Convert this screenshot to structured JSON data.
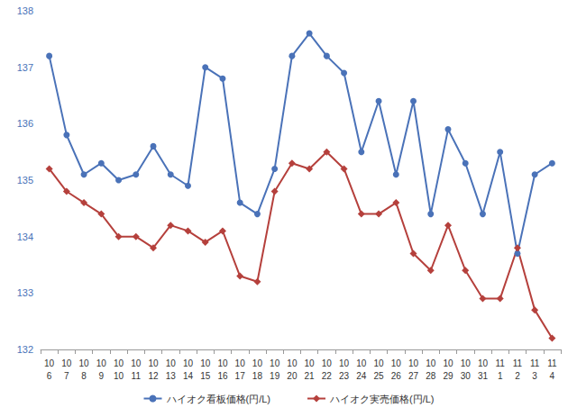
{
  "chart_data": {
    "type": "line",
    "categories": [
      "10\n6",
      "10\n7",
      "10\n8",
      "10\n9",
      "10\n10",
      "10\n11",
      "10\n12",
      "10\n13",
      "10\n14",
      "10\n15",
      "10\n16",
      "10\n17",
      "10\n18",
      "10\n19",
      "10\n20",
      "10\n21",
      "10\n22",
      "10\n23",
      "10\n24",
      "10\n25",
      "10\n26",
      "10\n27",
      "10\n28",
      "10\n29",
      "10\n30",
      "10\n31",
      "11\n1",
      "11\n2",
      "11\n3",
      "11\n4"
    ],
    "series": [
      {
        "name": "ハイオク看板価格(円/L)",
        "color": "#4a72b8",
        "marker": "circle",
        "line_style": "solid",
        "values": [
          137.2,
          135.8,
          135.1,
          135.3,
          135.0,
          135.1,
          135.6,
          135.1,
          134.9,
          137.0,
          136.8,
          134.6,
          134.4,
          135.2,
          137.2,
          137.6,
          137.2,
          136.9,
          135.5,
          136.4,
          135.1,
          136.4,
          134.4,
          135.9,
          135.3,
          134.4,
          135.5,
          133.7,
          135.1,
          135.3
        ]
      },
      {
        "name": "ハイオク実売価格(円/L)",
        "color": "#b5403c",
        "marker": "diamond",
        "line_style": "solid",
        "values": [
          135.2,
          134.8,
          134.6,
          134.4,
          134.0,
          134.0,
          133.8,
          134.2,
          134.1,
          133.9,
          134.1,
          133.3,
          133.2,
          134.8,
          135.3,
          135.2,
          135.5,
          135.2,
          134.4,
          134.4,
          134.6,
          133.7,
          133.4,
          134.2,
          133.4,
          132.9,
          132.9,
          133.8,
          132.7,
          132.2
        ]
      }
    ],
    "ylim": [
      132,
      138
    ],
    "yticks": [
      132,
      133,
      134,
      135,
      136,
      137,
      138
    ],
    "grid": false,
    "legend": "bottom"
  }
}
